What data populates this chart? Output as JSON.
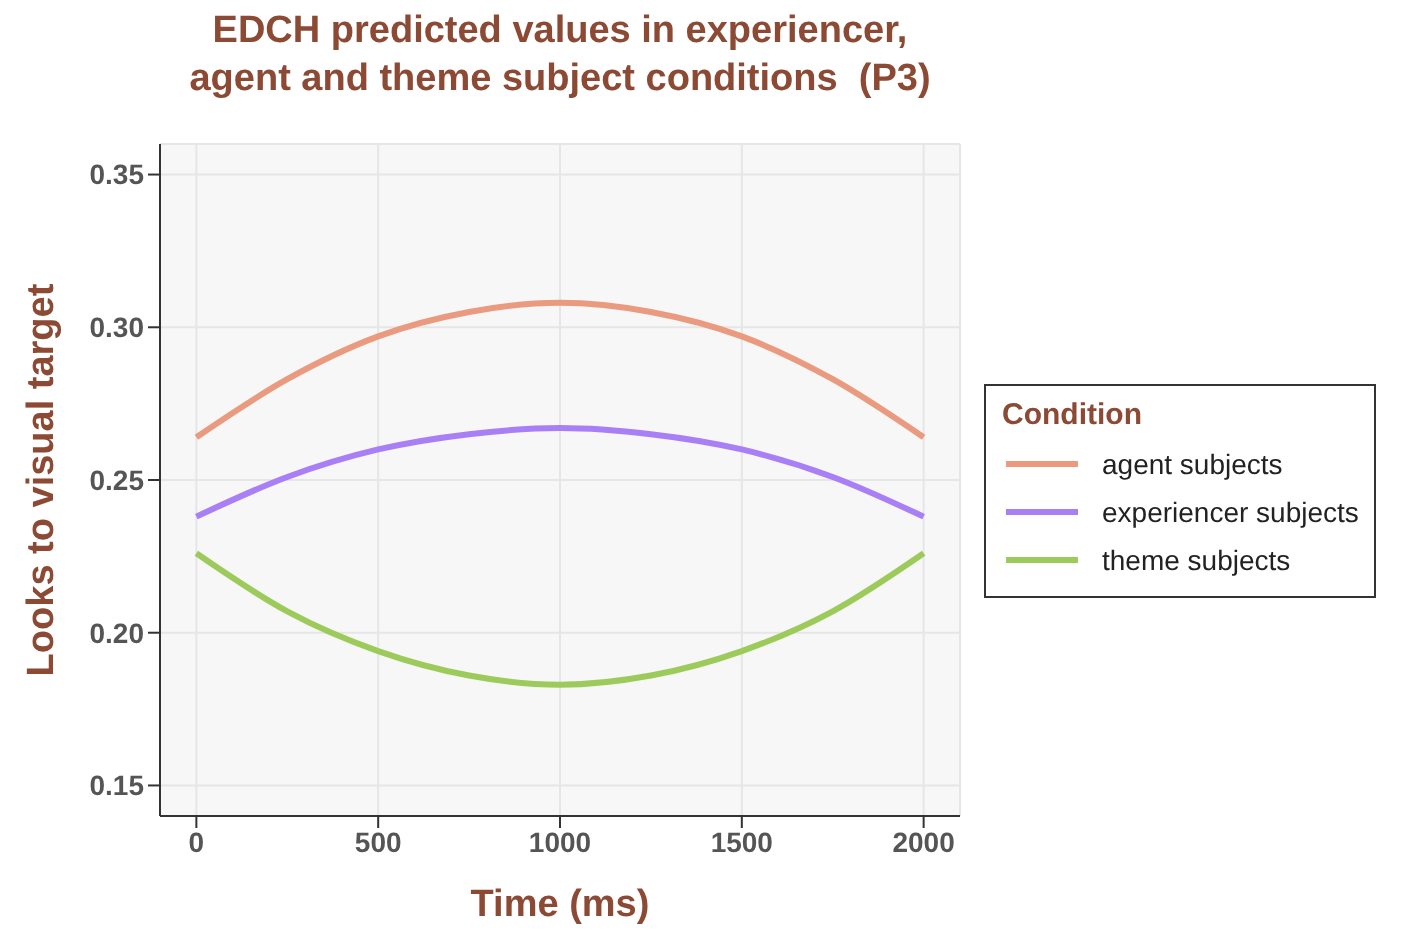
{
  "chart_data": {
    "type": "line",
    "title": "EDCH predicted values in experiencer,\nagent and theme subject conditions  (P3)",
    "xlabel": "Time (ms)",
    "ylabel": "Looks to visual target",
    "legend_title": "Condition",
    "x": [
      0,
      250,
      500,
      750,
      1000,
      1250,
      1500,
      1750,
      2000
    ],
    "series": [
      {
        "name": "agent subjects",
        "color": "#ea9a7e",
        "values": [
          0.264,
          0.283,
          0.297,
          0.305,
          0.308,
          0.305,
          0.297,
          0.283,
          0.264
        ]
      },
      {
        "name": "experiencer subjects",
        "color": "#a97ff5",
        "values": [
          0.238,
          0.251,
          0.26,
          0.265,
          0.267,
          0.265,
          0.26,
          0.251,
          0.238
        ]
      },
      {
        "name": "theme subjects",
        "color": "#9dcb5b",
        "values": [
          0.226,
          0.207,
          0.194,
          0.186,
          0.183,
          0.186,
          0.194,
          0.207,
          0.226
        ]
      }
    ],
    "xlim": [
      -100,
      2100
    ],
    "xticks": [
      0,
      500,
      1000,
      1500,
      2000
    ],
    "ylim": [
      0.14,
      0.36
    ],
    "yticks": [
      0.15,
      {
        "value": 0.2,
        "label": "0.20"
      },
      0.25,
      {
        "value": 0.3,
        "label": "0.30"
      },
      0.35
    ],
    "grid": true,
    "legend": "right",
    "line_style": "solid",
    "marker": "none"
  }
}
